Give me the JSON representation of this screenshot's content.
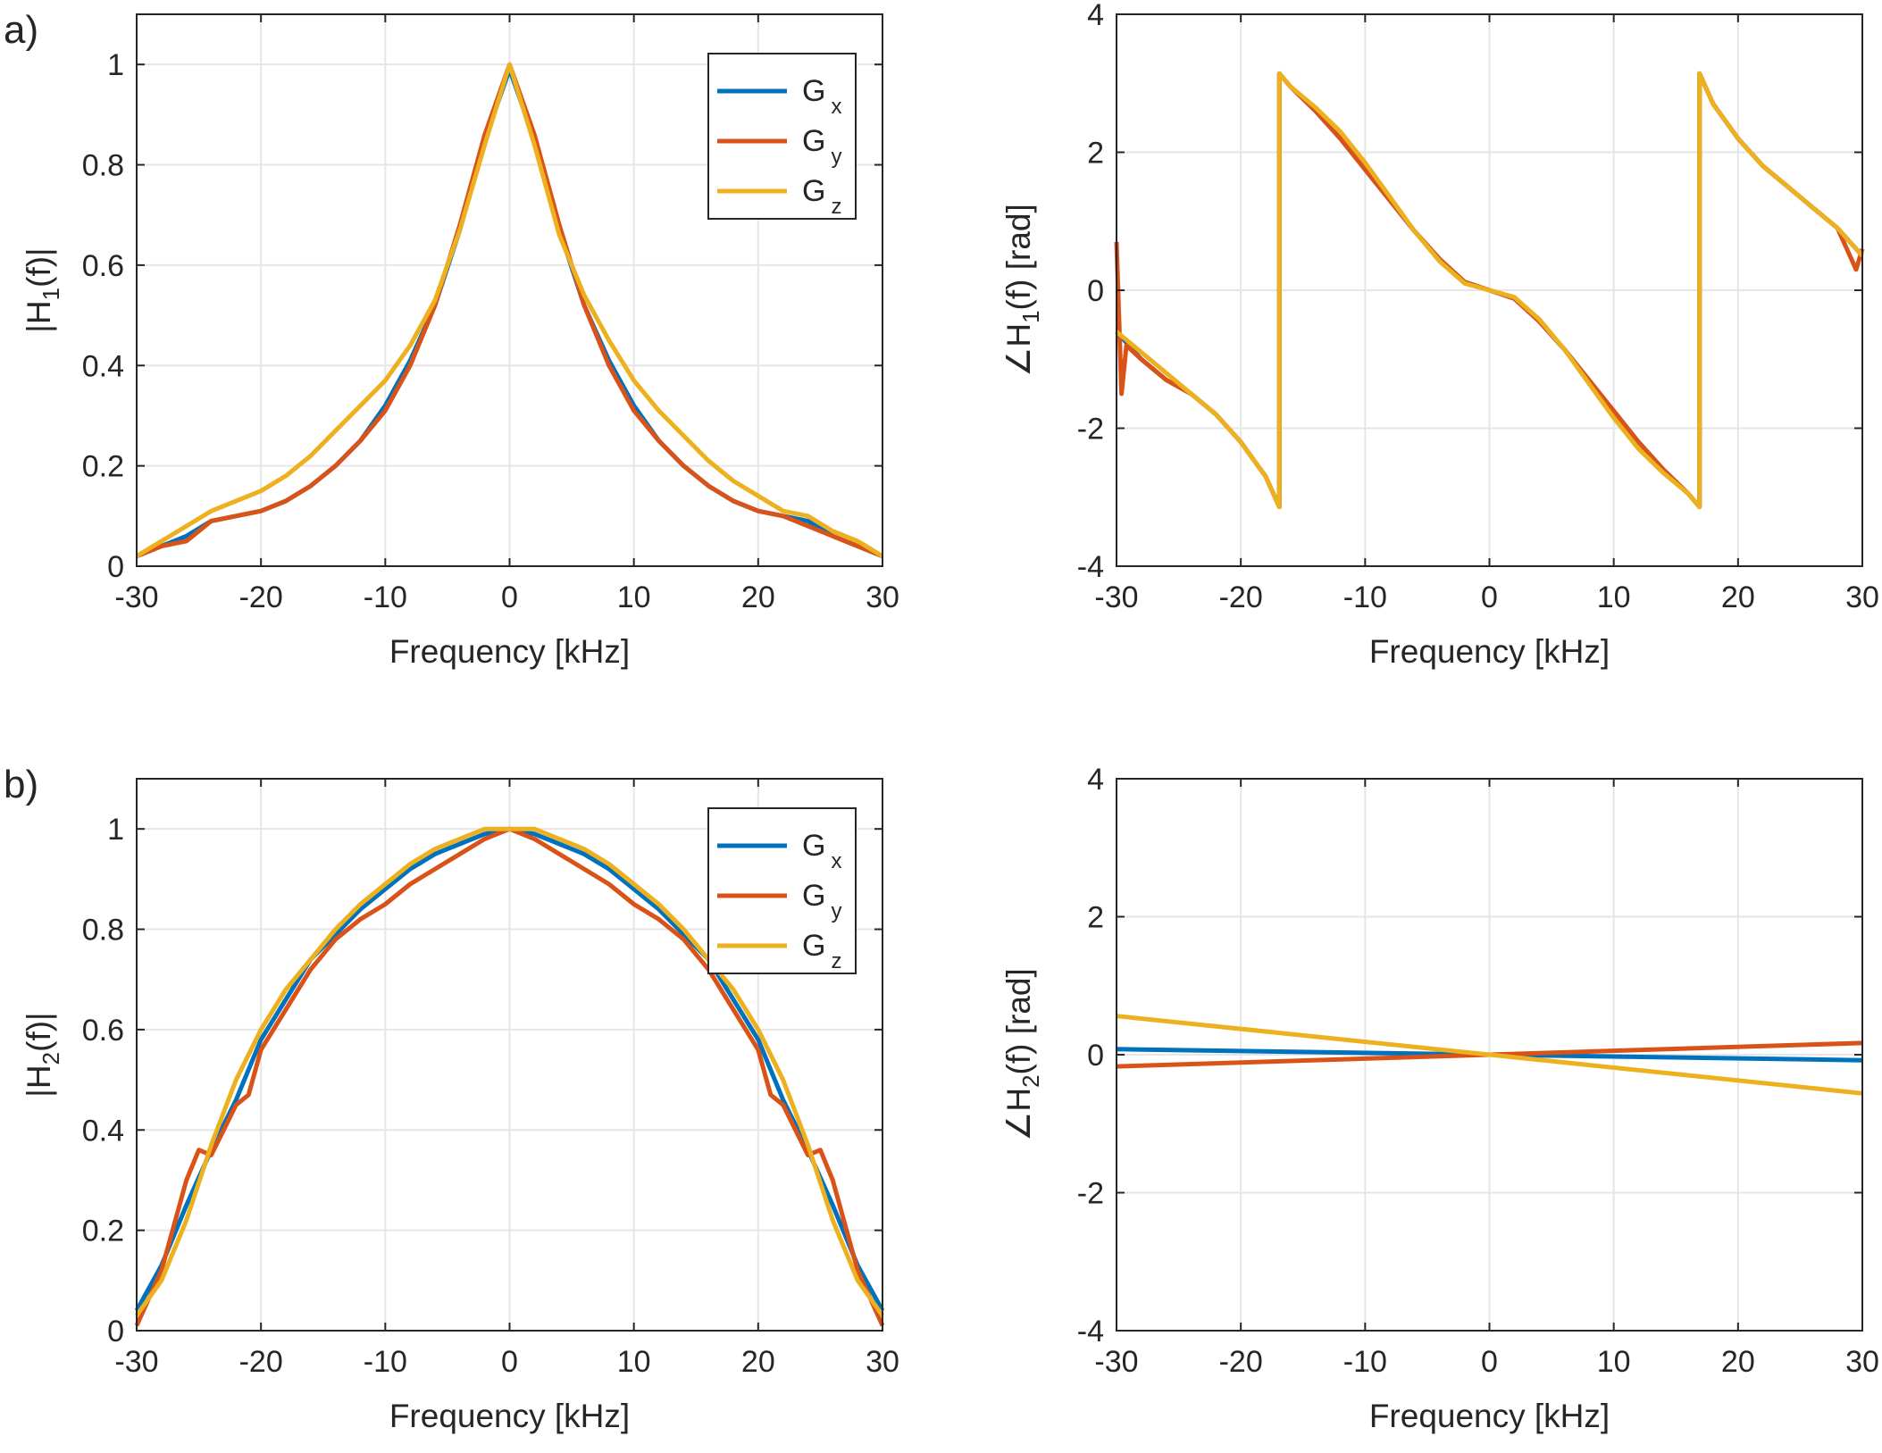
{
  "figure": {
    "panel_labels": [
      "a)",
      "b)"
    ]
  },
  "chart_data": [
    {
      "type": "line",
      "panel": "a",
      "xlabel": "Frequency [kHz]",
      "ylabel_main": "|H",
      "ylabel_sub": "1",
      "ylabel_tail": "(f)|",
      "xlim": [
        -30,
        30
      ],
      "ylim": [
        0,
        1.1
      ],
      "xticks": [
        -30,
        -20,
        -10,
        0,
        10,
        20,
        30
      ],
      "yticks": [
        0,
        0.2,
        0.4,
        0.6,
        0.8,
        1
      ],
      "grid": true,
      "legend": {
        "placement": "top-right",
        "entries": [
          {
            "main": "G",
            "sub": "x"
          },
          {
            "main": "G",
            "sub": "y"
          },
          {
            "main": "G",
            "sub": "z"
          }
        ]
      },
      "series": [
        {
          "name": "Gx",
          "color": "#0072BD",
          "x": [
            -30,
            -28,
            -26,
            -24,
            -22,
            -20,
            -18,
            -16,
            -14,
            -12,
            -10,
            -8,
            -6,
            -4,
            -2,
            0,
            2,
            4,
            6,
            8,
            10,
            12,
            14,
            16,
            18,
            20,
            22,
            24,
            26,
            28,
            30
          ],
          "y": [
            0.02,
            0.04,
            0.06,
            0.09,
            0.1,
            0.11,
            0.13,
            0.16,
            0.2,
            0.25,
            0.32,
            0.41,
            0.52,
            0.67,
            0.85,
            0.99,
            0.85,
            0.67,
            0.52,
            0.41,
            0.32,
            0.25,
            0.2,
            0.16,
            0.13,
            0.11,
            0.1,
            0.09,
            0.06,
            0.04,
            0.02
          ]
        },
        {
          "name": "Gy",
          "color": "#D95319",
          "x": [
            -30,
            -28,
            -26,
            -24,
            -22,
            -20,
            -18,
            -16,
            -14,
            -12,
            -10,
            -8,
            -6,
            -4,
            -2,
            0,
            2,
            4,
            6,
            8,
            10,
            12,
            14,
            16,
            18,
            20,
            22,
            24,
            26,
            28,
            30
          ],
          "y": [
            0.02,
            0.04,
            0.05,
            0.09,
            0.1,
            0.11,
            0.13,
            0.16,
            0.2,
            0.25,
            0.31,
            0.4,
            0.52,
            0.68,
            0.86,
            1.0,
            0.86,
            0.68,
            0.52,
            0.4,
            0.31,
            0.25,
            0.2,
            0.16,
            0.13,
            0.11,
            0.1,
            0.08,
            0.06,
            0.04,
            0.02
          ]
        },
        {
          "name": "Gz",
          "color": "#EDB120",
          "x": [
            -30,
            -28,
            -26,
            -24,
            -22,
            -20,
            -18,
            -16,
            -14,
            -12,
            -10,
            -8,
            -6,
            -4,
            -2,
            0,
            2,
            4,
            6,
            8,
            10,
            12,
            14,
            16,
            18,
            20,
            22,
            24,
            26,
            28,
            30
          ],
          "y": [
            0.02,
            0.05,
            0.08,
            0.11,
            0.13,
            0.15,
            0.18,
            0.22,
            0.27,
            0.32,
            0.37,
            0.44,
            0.53,
            0.67,
            0.84,
            1.0,
            0.84,
            0.66,
            0.54,
            0.45,
            0.37,
            0.31,
            0.26,
            0.21,
            0.17,
            0.14,
            0.11,
            0.1,
            0.07,
            0.05,
            0.02
          ]
        }
      ]
    },
    {
      "type": "line",
      "panel": "a-phase",
      "xlabel": "Frequency [kHz]",
      "ylabel_main": "∠H",
      "ylabel_sub": "1",
      "ylabel_tail": "(f) [rad]",
      "xlim": [
        -30,
        30
      ],
      "ylim": [
        -4,
        4
      ],
      "xticks": [
        -30,
        -20,
        -10,
        0,
        10,
        20,
        30
      ],
      "yticks": [
        -4,
        -2,
        0,
        2,
        4
      ],
      "grid": true,
      "series": [
        {
          "name": "Gx",
          "color": "#0072BD",
          "x": [
            -30,
            -28,
            -26,
            -24,
            -22,
            -20,
            -18,
            -16.9,
            -16.9,
            -16,
            -14,
            -12,
            -10,
            -8,
            -6,
            -4,
            -2,
            0,
            2,
            4,
            6,
            8,
            10,
            12,
            14,
            16,
            16.9,
            16.9,
            18,
            20,
            22,
            24,
            26,
            28,
            30
          ],
          "y": [
            -0.6,
            -1.0,
            -1.3,
            -1.5,
            -1.8,
            -2.2,
            -2.7,
            -3.14,
            3.14,
            2.95,
            2.6,
            2.2,
            1.75,
            1.3,
            0.85,
            0.45,
            0.12,
            0,
            -0.12,
            -0.45,
            -0.85,
            -1.3,
            -1.75,
            -2.2,
            -2.6,
            -2.95,
            -3.14,
            3.14,
            2.7,
            2.2,
            1.8,
            1.5,
            1.2,
            0.9,
            0.5
          ]
        },
        {
          "name": "Gy",
          "color": "#D95319",
          "x": [
            -30,
            -29.6,
            -29.2,
            -28,
            -26,
            -24,
            -22,
            -20,
            -18,
            -16.9,
            -16.9,
            -16,
            -14,
            -12,
            -10,
            -8,
            -6,
            -4,
            -2,
            0,
            2,
            4,
            6,
            8,
            10,
            12,
            14,
            16,
            16.9,
            16.9,
            18,
            20,
            22,
            24,
            26,
            28,
            29.5,
            30
          ],
          "y": [
            0.7,
            -1.5,
            -0.8,
            -1.0,
            -1.3,
            -1.5,
            -1.8,
            -2.2,
            -2.7,
            -3.14,
            3.14,
            2.95,
            2.6,
            2.2,
            1.75,
            1.3,
            0.85,
            0.45,
            0.12,
            0,
            -0.12,
            -0.45,
            -0.85,
            -1.3,
            -1.75,
            -2.2,
            -2.6,
            -2.95,
            -3.14,
            3.14,
            2.7,
            2.2,
            1.8,
            1.5,
            1.2,
            0.9,
            0.3,
            0.6
          ]
        },
        {
          "name": "Gz",
          "color": "#EDB120",
          "x": [
            -30,
            -28,
            -26,
            -24,
            -22,
            -20,
            -18,
            -16.9,
            -16.9,
            -16,
            -14,
            -12,
            -10,
            -8,
            -6,
            -4,
            -2,
            0,
            2,
            4,
            6,
            8,
            10,
            12,
            14,
            16,
            16.9,
            16.9,
            18,
            20,
            22,
            24,
            26,
            28,
            30
          ],
          "y": [
            -0.6,
            -0.9,
            -1.2,
            -1.5,
            -1.8,
            -2.2,
            -2.7,
            -3.14,
            3.14,
            2.95,
            2.65,
            2.3,
            1.85,
            1.35,
            0.85,
            0.42,
            0.1,
            0,
            -0.1,
            -0.42,
            -0.85,
            -1.35,
            -1.85,
            -2.3,
            -2.65,
            -2.95,
            -3.14,
            3.14,
            2.7,
            2.2,
            1.8,
            1.5,
            1.2,
            0.9,
            0.5
          ]
        }
      ]
    },
    {
      "type": "line",
      "panel": "b",
      "xlabel": "Frequency [kHz]",
      "ylabel_main": "|H",
      "ylabel_sub": "2",
      "ylabel_tail": "(f)|",
      "xlim": [
        -30,
        30
      ],
      "ylim": [
        0,
        1.1
      ],
      "xticks": [
        -30,
        -20,
        -10,
        0,
        10,
        20,
        30
      ],
      "yticks": [
        0,
        0.2,
        0.4,
        0.6,
        0.8,
        1
      ],
      "grid": true,
      "legend": {
        "placement": "top-right",
        "entries": [
          {
            "main": "G",
            "sub": "x"
          },
          {
            "main": "G",
            "sub": "y"
          },
          {
            "main": "G",
            "sub": "z"
          }
        ]
      },
      "series": [
        {
          "name": "Gx",
          "color": "#0072BD",
          "x": [
            -30,
            -28,
            -26,
            -24,
            -22,
            -20,
            -18,
            -16,
            -14,
            -12,
            -10,
            -8,
            -6,
            -4,
            -2,
            0,
            2,
            4,
            6,
            8,
            10,
            12,
            14,
            16,
            18,
            20,
            22,
            24,
            26,
            28,
            30
          ],
          "y": [
            0.04,
            0.13,
            0.25,
            0.36,
            0.46,
            0.58,
            0.66,
            0.74,
            0.79,
            0.84,
            0.88,
            0.92,
            0.95,
            0.97,
            0.99,
            1.0,
            0.99,
            0.97,
            0.95,
            0.92,
            0.88,
            0.84,
            0.79,
            0.74,
            0.66,
            0.58,
            0.46,
            0.36,
            0.25,
            0.13,
            0.04
          ]
        },
        {
          "name": "Gy",
          "color": "#D95319",
          "x": [
            -30,
            -28,
            -26,
            -25,
            -24,
            -22,
            -21,
            -20,
            -18,
            -16,
            -14,
            -12,
            -10,
            -8,
            -6,
            -4,
            -2,
            0,
            2,
            4,
            6,
            8,
            10,
            12,
            14,
            16,
            18,
            20,
            21,
            22,
            24,
            25,
            26,
            28,
            30
          ],
          "y": [
            0.01,
            0.12,
            0.3,
            0.36,
            0.35,
            0.45,
            0.47,
            0.56,
            0.64,
            0.72,
            0.78,
            0.82,
            0.85,
            0.89,
            0.92,
            0.95,
            0.98,
            1.0,
            0.98,
            0.95,
            0.92,
            0.89,
            0.85,
            0.82,
            0.78,
            0.72,
            0.64,
            0.56,
            0.47,
            0.45,
            0.35,
            0.36,
            0.3,
            0.12,
            0.01
          ]
        },
        {
          "name": "Gz",
          "color": "#EDB120",
          "x": [
            -30,
            -28,
            -26,
            -24,
            -22,
            -20,
            -18,
            -16,
            -14,
            -12,
            -10,
            -8,
            -6,
            -4,
            -2,
            0,
            2,
            4,
            6,
            8,
            10,
            12,
            14,
            16,
            18,
            20,
            22,
            24,
            26,
            28,
            30
          ],
          "y": [
            0.03,
            0.1,
            0.22,
            0.37,
            0.5,
            0.6,
            0.68,
            0.74,
            0.8,
            0.85,
            0.89,
            0.93,
            0.96,
            0.98,
            1.0,
            1.0,
            1.0,
            0.98,
            0.96,
            0.93,
            0.89,
            0.85,
            0.8,
            0.74,
            0.68,
            0.6,
            0.5,
            0.37,
            0.22,
            0.1,
            0.03
          ]
        }
      ]
    },
    {
      "type": "line",
      "panel": "b-phase",
      "xlabel": "Frequency [kHz]",
      "ylabel_main": "∠H",
      "ylabel_sub": "2",
      "ylabel_tail": "(f) [rad]",
      "xlim": [
        -30,
        30
      ],
      "ylim": [
        -4,
        4
      ],
      "xticks": [
        -30,
        -20,
        -10,
        0,
        10,
        20,
        30
      ],
      "yticks": [
        -4,
        -2,
        0,
        2,
        4
      ],
      "grid": true,
      "series": [
        {
          "name": "Gx",
          "color": "#0072BD",
          "x": [
            -30,
            30
          ],
          "y": [
            0.08,
            -0.08
          ]
        },
        {
          "name": "Gy",
          "color": "#D95319",
          "x": [
            -30,
            30
          ],
          "y": [
            -0.17,
            0.17
          ]
        },
        {
          "name": "Gz",
          "color": "#EDB120",
          "x": [
            -30,
            30
          ],
          "y": [
            0.56,
            -0.56
          ]
        }
      ]
    }
  ]
}
